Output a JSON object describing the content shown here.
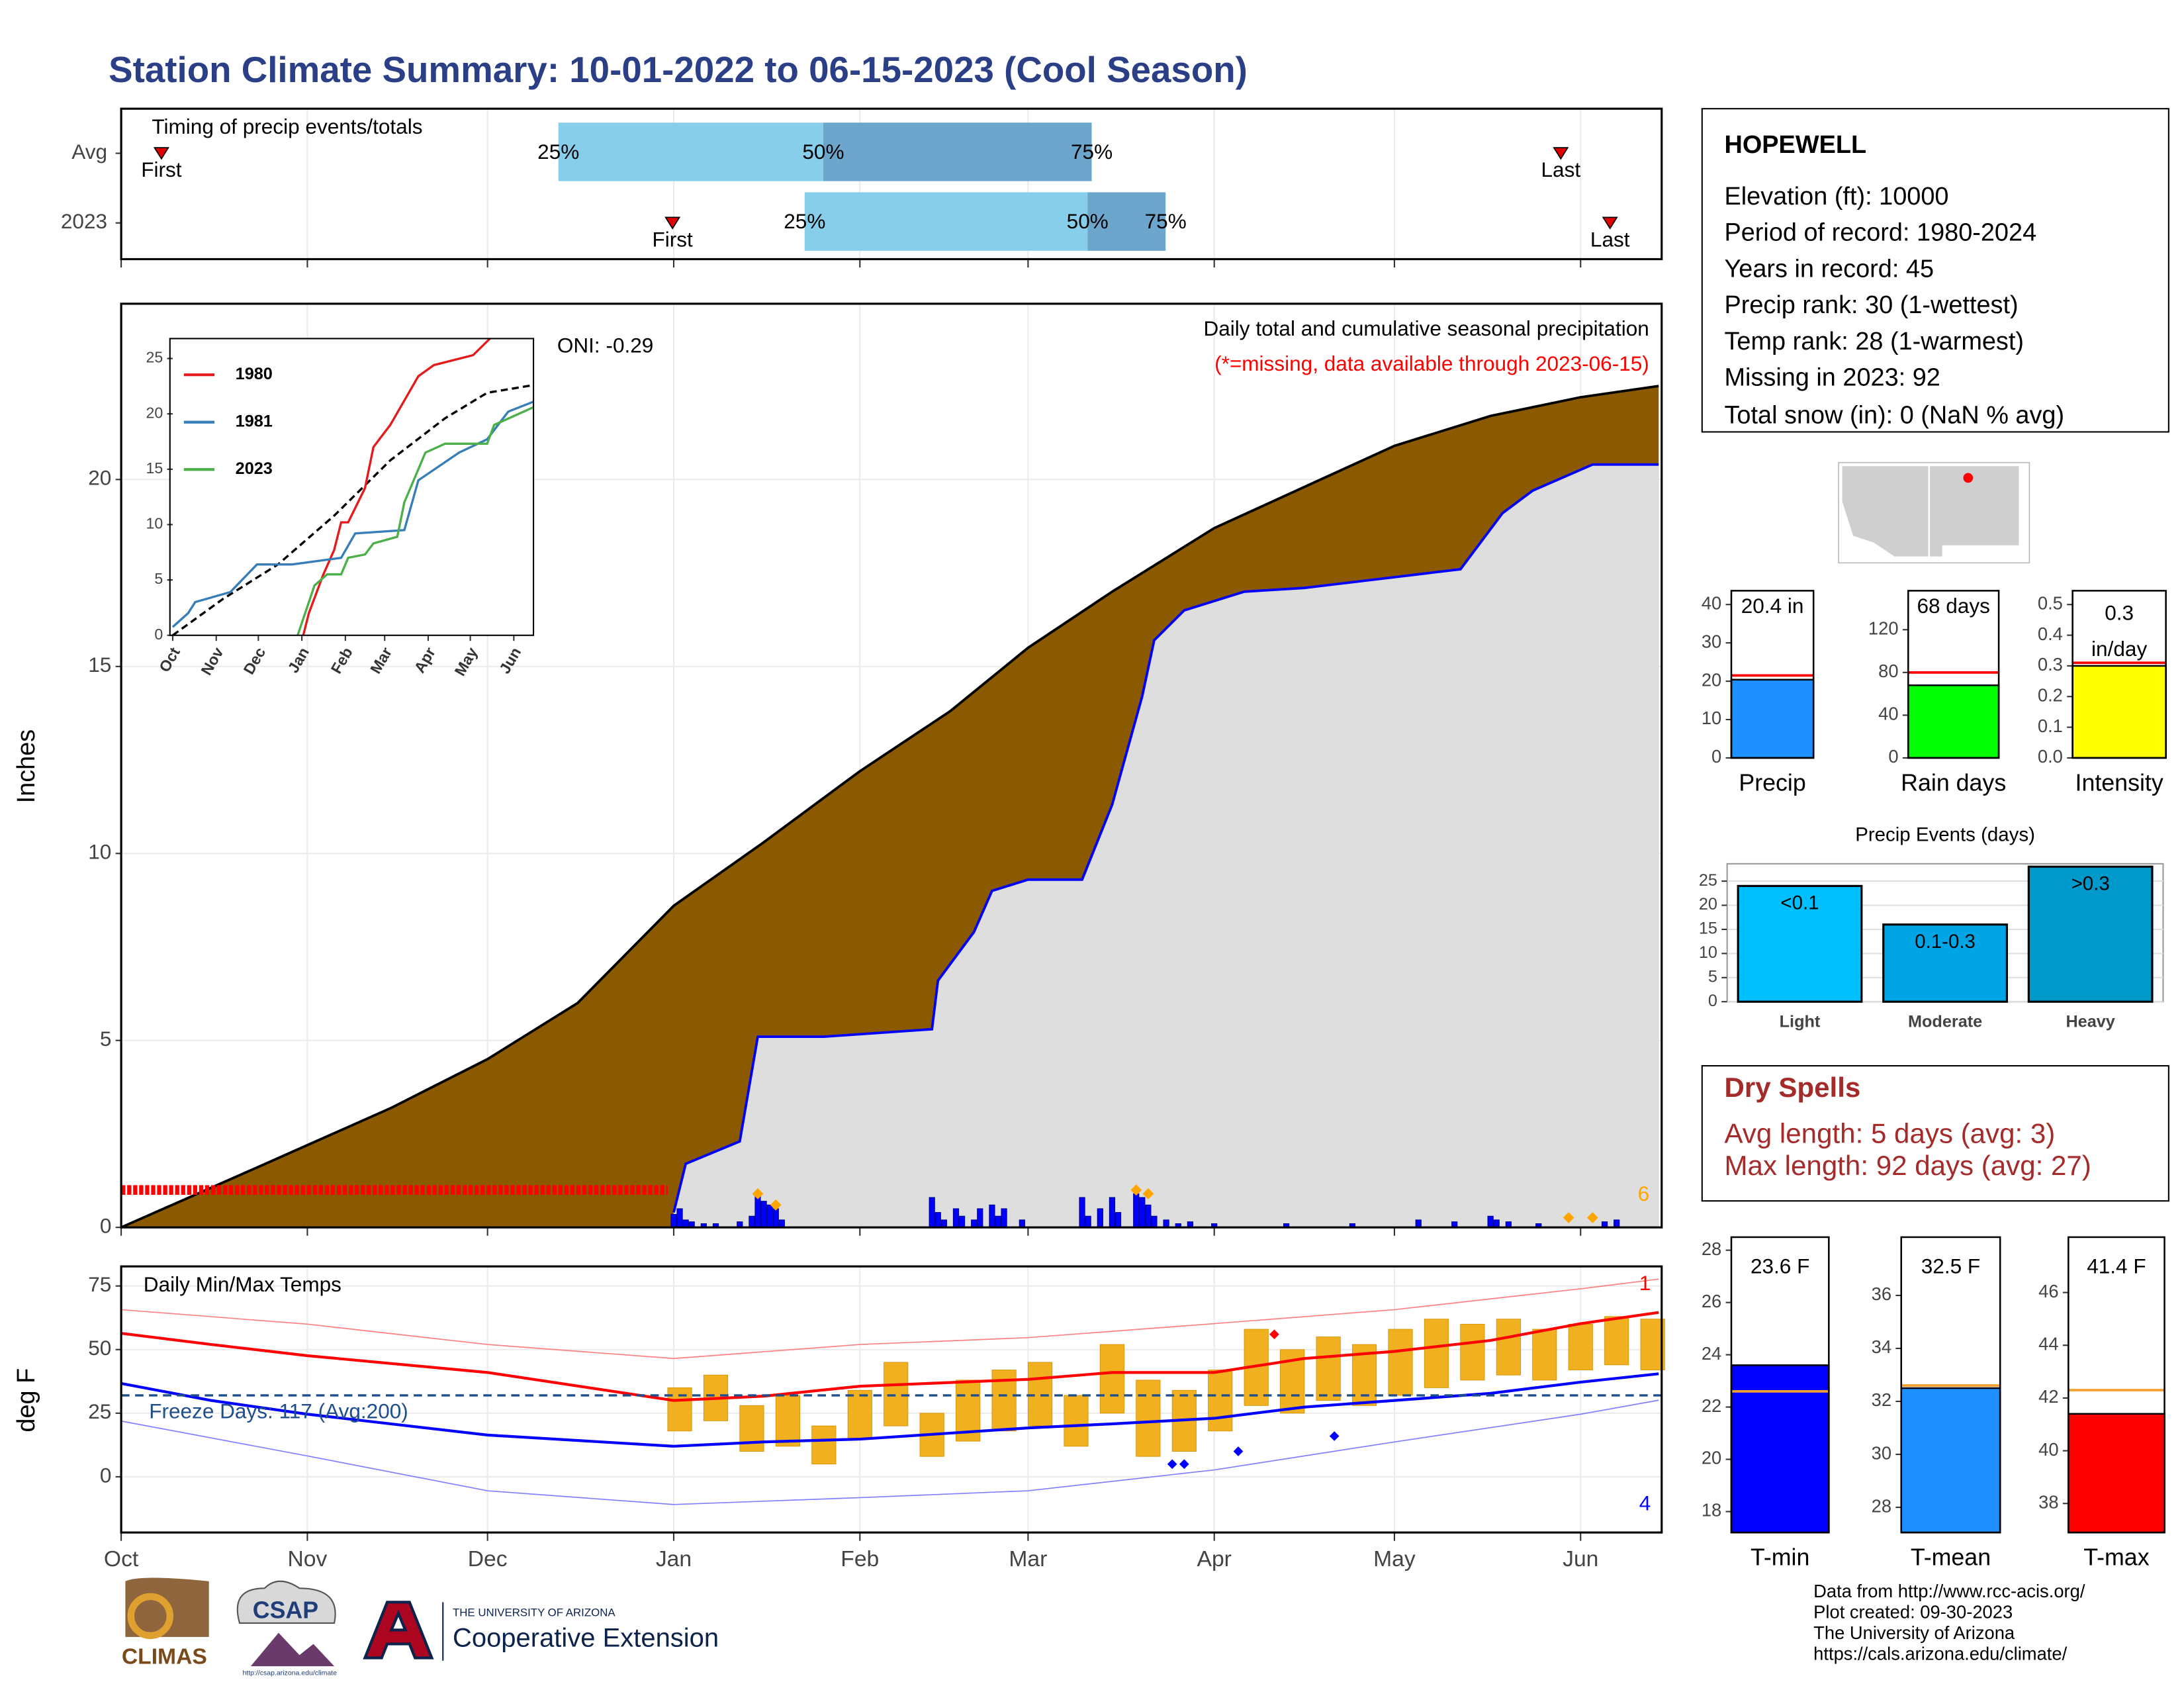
{
  "title": "Station Climate Summary: 10-01-2022 to 06-15-2023 (Cool Season)",
  "chart_data": [
    {
      "type": "timing",
      "title": "Timing of precip events/totals",
      "categories": [
        "Avg",
        "2023"
      ],
      "xlim": [
        0,
        256.5
      ],
      "xticks": [
        0,
        31,
        61,
        92,
        123,
        151,
        182,
        212,
        243
      ],
      "quantile_labels": [
        "25%",
        "50%",
        "75%"
      ],
      "event_labels": [
        "First",
        "Last"
      ],
      "first": [
        6.7,
        91.8
      ],
      "q25": [
        72.8,
        113.8
      ],
      "q50": [
        116.9,
        160.9
      ],
      "q75": [
        161.6,
        173.9
      ],
      "last": [
        239.7,
        247.9
      ],
      "colors": [
        "#87ceeb",
        "#6ca6cd"
      ],
      "marker_color": "#e00000"
    },
    {
      "type": "cumulative",
      "title": "Daily total and cumulative seasonal precipitation",
      "subtitle": "(*=missing, data available through 2023-06-15)",
      "annotation": "ONI: -0.29",
      "y_label": "Inches",
      "xlim": [
        0,
        256.5
      ],
      "xticks": [
        0,
        31,
        61,
        92,
        123,
        151,
        182,
        212,
        243
      ],
      "ylim": [
        0,
        24.7
      ],
      "yticks": [
        0,
        5,
        10,
        15,
        20
      ],
      "grid": true,
      "series": [
        {
          "color": "#000000",
          "fill": "#8b5a00",
          "x": [
            0,
            24,
            31,
            45,
            61,
            76,
            92,
            107,
            123,
            138,
            151,
            165,
            182,
            197,
            212,
            228,
            243,
            256
          ],
          "values": [
            0,
            1.7,
            2.2,
            3.2,
            4.5,
            6.0,
            8.6,
            10.3,
            12.2,
            13.8,
            15.5,
            17.0,
            18.7,
            19.8,
            20.9,
            21.7,
            22.2,
            22.5
          ]
        },
        {
          "color": "#0000ff",
          "fill": "#dedede",
          "x": [
            92,
            94,
            103,
            106,
            117,
            135,
            136,
            142,
            145,
            151,
            160,
            165,
            170,
            172,
            177,
            187,
            197,
            223,
            230,
            235,
            245,
            256
          ],
          "values": [
            0.4,
            1.7,
            2.3,
            5.1,
            5.1,
            5.3,
            6.6,
            7.9,
            9.0,
            9.3,
            9.3,
            11.3,
            14.2,
            15.7,
            16.5,
            17.0,
            17.1,
            17.6,
            19.1,
            19.7,
            20.4,
            20.4
          ]
        }
      ],
      "daily": {
        "color": "#0000ff",
        "x": [
          92,
          93,
          94,
          95,
          97,
          99,
          103,
          105,
          106,
          107,
          108,
          109,
          110,
          135,
          136,
          137,
          139,
          140,
          142,
          143,
          145,
          146,
          147,
          150,
          160,
          161,
          163,
          165,
          166,
          169,
          170,
          171,
          172,
          174,
          176,
          178,
          182,
          194,
          205,
          216,
          222,
          228,
          229,
          231,
          236,
          247,
          249
        ],
        "values": [
          0.35,
          0.5,
          0.2,
          0.15,
          0.1,
          0.1,
          0.15,
          0.3,
          0.9,
          0.7,
          0.6,
          0.5,
          0.2,
          0.8,
          0.4,
          0.2,
          0.5,
          0.3,
          0.2,
          0.5,
          0.6,
          0.3,
          0.5,
          0.2,
          0.8,
          0.3,
          0.5,
          0.8,
          0.4,
          0.9,
          0.8,
          0.6,
          0.3,
          0.2,
          0.1,
          0.15,
          0.1,
          0.1,
          0.1,
          0.2,
          0.15,
          0.3,
          0.2,
          0.15,
          0.1,
          0.15,
          0.2
        ]
      },
      "missing": {
        "color": "#ff0000",
        "range": [
          0,
          91
        ],
        "y": 1
      },
      "extremes": {
        "color": "#ffa500",
        "count": 6,
        "x": [
          106,
          109,
          169,
          171,
          241,
          245
        ],
        "values": [
          0.9,
          0.6,
          1.0,
          0.9,
          0.26,
          0.26
        ]
      }
    },
    {
      "type": "line",
      "xlim": [
        0,
        257
      ],
      "xticks": [
        {
          "value": 0,
          "label": "Oct"
        },
        {
          "value": 31,
          "label": "Nov"
        },
        {
          "value": 61,
          "label": "Dec"
        },
        {
          "value": 92,
          "label": "Jan"
        },
        {
          "value": 123,
          "label": "Feb"
        },
        {
          "value": 151,
          "label": "Mar"
        },
        {
          "value": 182,
          "label": "Apr"
        },
        {
          "value": 212,
          "label": "May"
        },
        {
          "value": 243,
          "label": "Jun"
        }
      ],
      "ylim": [
        0,
        26.8
      ],
      "yticks": [
        0,
        5,
        10,
        15,
        20,
        25
      ],
      "legend": "top-left",
      "series": [
        {
          "name": "1980",
          "color": "#e41a1c",
          "x": [
            93,
            97,
            107,
            115,
            120,
            125,
            137,
            143,
            155,
            175,
            186,
            214,
            226
          ],
          "values": [
            0,
            2,
            5.4,
            7.7,
            10.2,
            10.2,
            13.3,
            17,
            19,
            23.4,
            24.4,
            25.3,
            26.8
          ]
        },
        {
          "name": "1981",
          "color": "#377eb8",
          "x": [
            0,
            11,
            16,
            41,
            60,
            85,
            120,
            130,
            165,
            175,
            204,
            224,
            239,
            257
          ],
          "values": [
            0.75,
            2,
            3,
            3.9,
            6.4,
            6.4,
            7.0,
            9.2,
            9.5,
            14,
            16.5,
            17.7,
            20.2,
            21.1
          ]
        },
        {
          "name": "2023",
          "color": "#4daf4a",
          "x": [
            89,
            101,
            110,
            120,
            125,
            137,
            143,
            160,
            165,
            180,
            194,
            224,
            229,
            257
          ],
          "values": [
            0,
            4.5,
            5.5,
            5.5,
            7,
            7.3,
            8.3,
            8.9,
            12,
            16.5,
            17.3,
            17.3,
            19,
            20.6
          ]
        }
      ],
      "average": {
        "color": "#000000",
        "x": [
          0,
          36,
          75,
          115,
          155,
          194,
          224,
          257
        ],
        "values": [
          0,
          3.3,
          6.4,
          10.8,
          15.8,
          19.6,
          21.9,
          22.6
        ]
      }
    },
    {
      "type": "temperature",
      "title": "Daily Min/Max Temps",
      "annotation": "Freeze Days: 117 (Avg:200)",
      "y_label": "deg F",
      "xlim": [
        0,
        256.5
      ],
      "xticks": [
        {
          "value": 0,
          "label": "Oct"
        },
        {
          "value": 31,
          "label": "Nov"
        },
        {
          "value": 61,
          "label": "Dec"
        },
        {
          "value": 92,
          "label": "Jan"
        },
        {
          "value": 123,
          "label": "Feb"
        },
        {
          "value": 151,
          "label": "Mar"
        },
        {
          "value": 182,
          "label": "Apr"
        },
        {
          "value": 212,
          "label": "May"
        },
        {
          "value": 243,
          "label": "Jun"
        }
      ],
      "ylim": [
        -21.9,
        82.7
      ],
      "yticks": [
        0,
        25,
        50,
        75
      ],
      "grid": true,
      "freeze": {
        "value": 32,
        "color": "#1f4e8c"
      },
      "lines": [
        {
          "color": "#ff8080",
          "width": 0.8,
          "x": [
            0,
            31,
            61,
            92,
            123,
            151,
            182,
            212,
            243,
            256
          ],
          "values": [
            65.7,
            60,
            52,
            46.5,
            52,
            54.7,
            60.2,
            65.7,
            73.9,
            77.7
          ]
        },
        {
          "color": "#8080ff",
          "width": 0.8,
          "x": [
            0,
            31,
            61,
            92,
            123,
            151,
            182,
            212,
            243,
            256
          ],
          "values": [
            21.9,
            8.2,
            -5.5,
            -10.9,
            -8.2,
            -5.5,
            2.7,
            13.7,
            24.6,
            30.1
          ]
        },
        {
          "color": "#ff0000",
          "width": 2,
          "x": [
            0,
            15,
            31,
            61,
            92,
            107,
            123,
            151,
            165,
            182,
            197,
            212,
            228,
            243,
            256
          ],
          "values": [
            56.4,
            52,
            47.6,
            41,
            30,
            31.7,
            35.6,
            38.3,
            41,
            41,
            46.5,
            49.3,
            53.6,
            60.2,
            64.6
          ]
        },
        {
          "color": "#0000ff",
          "width": 2,
          "x": [
            0,
            15,
            31,
            61,
            92,
            107,
            123,
            151,
            165,
            182,
            197,
            212,
            228,
            243,
            256
          ],
          "values": [
            36.7,
            30,
            24.6,
            16.4,
            12,
            13.7,
            14.8,
            19.2,
            20.8,
            23,
            27.4,
            30,
            32.8,
            37.2,
            40.5
          ]
        }
      ],
      "bars": {
        "color": "#f0b020",
        "x": [
          93,
          99,
          105,
          111,
          117,
          123,
          129,
          135,
          141,
          147,
          153,
          159,
          165,
          171,
          177,
          183,
          189,
          195,
          201,
          207,
          213,
          219,
          225,
          231,
          237,
          243,
          249,
          255
        ],
        "low": [
          18,
          22,
          10,
          12,
          5,
          15,
          20,
          8,
          14,
          18,
          20,
          12,
          25,
          8,
          10,
          18,
          28,
          25,
          30,
          28,
          32,
          35,
          38,
          40,
          38,
          42,
          44,
          42
        ],
        "high": [
          35,
          40,
          28,
          32,
          20,
          34,
          45,
          25,
          38,
          42,
          45,
          32,
          52,
          38,
          34,
          42,
          58,
          50,
          55,
          52,
          58,
          62,
          60,
          62,
          58,
          60,
          63,
          62
        ]
      },
      "hot_extremes": {
        "color": "#ff0000",
        "count": 1,
        "x": [
          192
        ],
        "values": [
          56
        ]
      },
      "cold_extremes": {
        "color": "#0000ff",
        "count": 4,
        "x": [
          175,
          177,
          186,
          202
        ],
        "values": [
          5,
          5,
          10,
          16
        ]
      }
    },
    {
      "type": "gauge",
      "category": "Precip",
      "value": 20.4,
      "value_label": "20.4 in",
      "average": 21.5,
      "color": "#1e90ff",
      "avg_color": "#ff0000",
      "ylim": [
        0,
        43.6
      ],
      "yticks": [
        0,
        10,
        20,
        30,
        40
      ]
    },
    {
      "type": "gauge",
      "category": "Rain days",
      "value": 68,
      "value_label": "68 days",
      "average": 80,
      "color": "#00ff00",
      "avg_color": "#ff0000",
      "ylim": [
        0,
        156.5
      ],
      "yticks": [
        0,
        40,
        80,
        120
      ]
    },
    {
      "type": "gauge",
      "category": "Intensity",
      "value": 0.3,
      "value_label": "0.3",
      "value_unit": "in/day",
      "average": 0.31,
      "color": "#ffff00",
      "avg_color": "#ff0000",
      "ylim": [
        0,
        0.545
      ],
      "yticks": [
        {
          "value": 0,
          "label": "0.0"
        },
        0.1,
        0.2,
        0.3,
        0.4,
        0.5
      ]
    },
    {
      "type": "bar",
      "title": "Precip Events (days)",
      "categories": [
        "Light",
        "Moderate",
        "Heavy"
      ],
      "bar_labels": [
        "<0.1",
        "0.1-0.3",
        ">0.3"
      ],
      "values": [
        24,
        16,
        28
      ],
      "colors": [
        "#00bfff",
        "#00a5e6",
        "#0099cc"
      ],
      "ylim": [
        0,
        28.6
      ],
      "yticks": [
        0,
        5,
        10,
        15,
        20,
        25
      ],
      "grid": true
    },
    {
      "type": "gauge",
      "category": "T-min",
      "value": 23.6,
      "value_label": "23.6 F",
      "average": 22.6,
      "color": "#0000ff",
      "avg_color": "#f0a030",
      "ylim": [
        17.2,
        28.5
      ],
      "yticks": [
        18,
        20,
        22,
        24,
        26,
        28
      ]
    },
    {
      "type": "gauge",
      "category": "T-mean",
      "value": 32.5,
      "value_label": "32.5 F",
      "average": 32.6,
      "color": "#1e90ff",
      "avg_color": "#f0a030",
      "ylim": [
        27.05,
        38.2
      ],
      "yticks": [
        28,
        30,
        32,
        34,
        36
      ]
    },
    {
      "type": "gauge",
      "category": "T-max",
      "value": 41.4,
      "value_label": "41.4 F",
      "average": 42.3,
      "color": "#ff0000",
      "avg_color": "#f0a030",
      "ylim": [
        36.9,
        48.1
      ],
      "yticks": [
        38,
        40,
        42,
        44,
        46
      ]
    }
  ],
  "station": {
    "name": "HOPEWELL",
    "lines": [
      "Elevation (ft): 10000",
      "Period of record: 1980-2024",
      "Years in record: 45",
      "Precip rank: 30 (1-wettest)",
      "Temp rank: 28 (1-warmest)",
      "Missing in 2023: 92",
      "Total snow (in): 0 (NaN % avg)"
    ]
  },
  "dry_spells": {
    "title": "Dry Spells",
    "lines": [
      "Avg length: 5 days (avg: 3)",
      "Max length: 92 days (avg: 27)"
    ]
  },
  "footer": [
    "Data from http://www.rcc-acis.org/",
    "Plot created: 09-30-2023",
    "The University of Arizona",
    "https://cals.arizona.edu/climate/"
  ],
  "logos": {
    "climas": "CLIMAS",
    "csap": "CSAP",
    "csap_url": "http://csap.arizona.edu/climate",
    "university": "THE UNIVERSITY OF ARIZONA",
    "extension": "Cooperative Extension"
  }
}
